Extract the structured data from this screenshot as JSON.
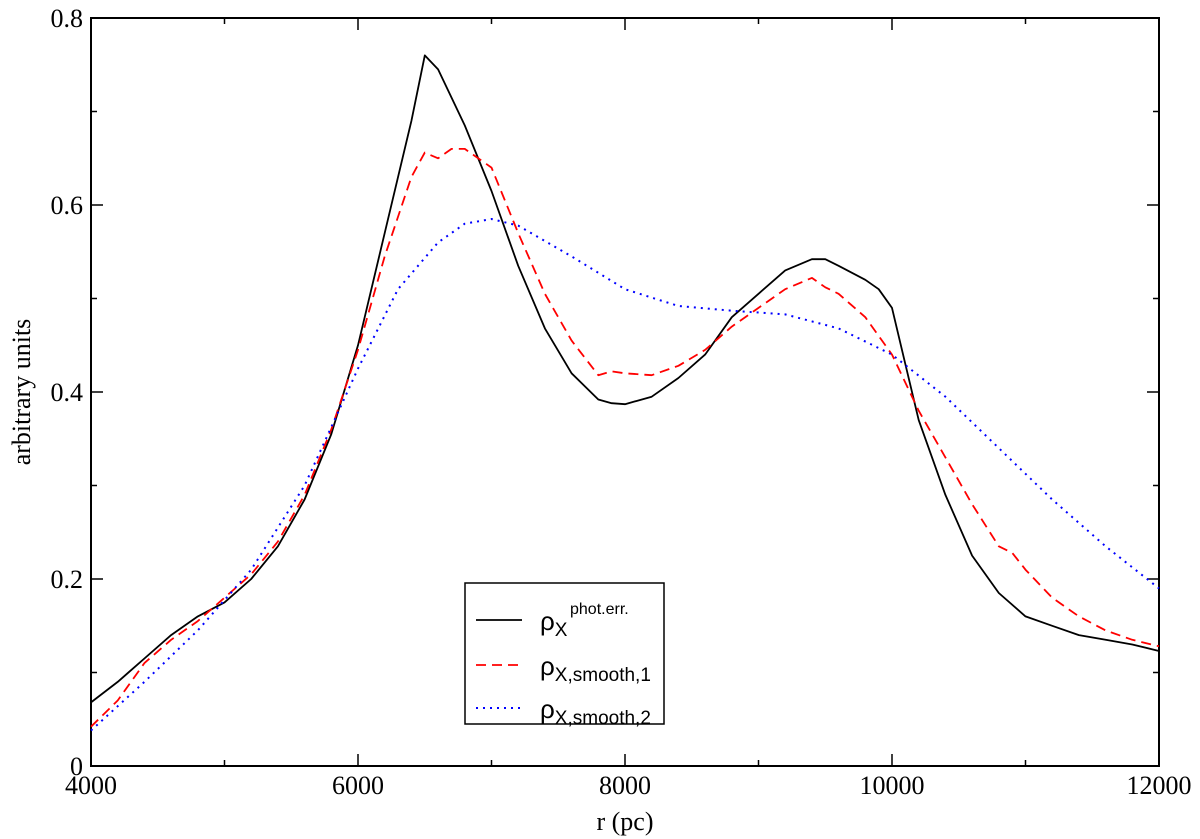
{
  "chart_data": {
    "type": "line",
    "xlabel": "r (pc)",
    "ylabel": "arbitrary units",
    "xlim": [
      4000,
      12000
    ],
    "ylim": [
      0,
      0.8
    ],
    "x_ticks": [
      "4000",
      "6000",
      "8000",
      "10000",
      "12000"
    ],
    "y_ticks": [
      "0",
      "0.2",
      "0.4",
      "0.6",
      "0.8"
    ],
    "grid": false,
    "legend_position": "bottom-center",
    "series": [
      {
        "name": "phot.err.",
        "legend_label": {
          "base": "ρ",
          "sub": "X",
          "sup": "phot.err."
        },
        "color": "#000000",
        "style": "solid",
        "points": [
          [
            4000,
            0.068
          ],
          [
            4200,
            0.09
          ],
          [
            4400,
            0.115
          ],
          [
            4600,
            0.14
          ],
          [
            4800,
            0.16
          ],
          [
            5000,
            0.175
          ],
          [
            5200,
            0.2
          ],
          [
            5400,
            0.235
          ],
          [
            5600,
            0.285
          ],
          [
            5800,
            0.355
          ],
          [
            6000,
            0.45
          ],
          [
            6200,
            0.57
          ],
          [
            6400,
            0.69
          ],
          [
            6500,
            0.76
          ],
          [
            6600,
            0.745
          ],
          [
            6800,
            0.685
          ],
          [
            7000,
            0.615
          ],
          [
            7200,
            0.535
          ],
          [
            7400,
            0.468
          ],
          [
            7600,
            0.42
          ],
          [
            7800,
            0.392
          ],
          [
            7900,
            0.388
          ],
          [
            8000,
            0.387
          ],
          [
            8200,
            0.395
          ],
          [
            8400,
            0.415
          ],
          [
            8600,
            0.44
          ],
          [
            8800,
            0.48
          ],
          [
            9000,
            0.505
          ],
          [
            9200,
            0.53
          ],
          [
            9400,
            0.542
          ],
          [
            9500,
            0.542
          ],
          [
            9600,
            0.535
          ],
          [
            9800,
            0.52
          ],
          [
            9900,
            0.51
          ],
          [
            10000,
            0.49
          ],
          [
            10100,
            0.43
          ],
          [
            10200,
            0.37
          ],
          [
            10400,
            0.29
          ],
          [
            10600,
            0.225
          ],
          [
            10800,
            0.185
          ],
          [
            11000,
            0.16
          ],
          [
            11200,
            0.15
          ],
          [
            11400,
            0.14
          ],
          [
            11600,
            0.135
          ],
          [
            11800,
            0.13
          ],
          [
            12000,
            0.123
          ]
        ]
      },
      {
        "name": "X,smooth,1",
        "legend_label": {
          "base": "ρ",
          "sub": "X,smooth,1",
          "sup": ""
        },
        "color": "#ff0000",
        "style": "dashed",
        "points": [
          [
            4000,
            0.042
          ],
          [
            4200,
            0.07
          ],
          [
            4400,
            0.11
          ],
          [
            4600,
            0.135
          ],
          [
            4800,
            0.155
          ],
          [
            5000,
            0.18
          ],
          [
            5200,
            0.205
          ],
          [
            5400,
            0.24
          ],
          [
            5600,
            0.29
          ],
          [
            5800,
            0.36
          ],
          [
            6000,
            0.445
          ],
          [
            6200,
            0.545
          ],
          [
            6400,
            0.63
          ],
          [
            6500,
            0.656
          ],
          [
            6600,
            0.65
          ],
          [
            6700,
            0.66
          ],
          [
            6800,
            0.66
          ],
          [
            7000,
            0.64
          ],
          [
            7200,
            0.57
          ],
          [
            7400,
            0.505
          ],
          [
            7600,
            0.455
          ],
          [
            7800,
            0.418
          ],
          [
            7900,
            0.422
          ],
          [
            8000,
            0.42
          ],
          [
            8200,
            0.418
          ],
          [
            8400,
            0.428
          ],
          [
            8600,
            0.445
          ],
          [
            8800,
            0.47
          ],
          [
            9000,
            0.49
          ],
          [
            9200,
            0.51
          ],
          [
            9400,
            0.522
          ],
          [
            9500,
            0.512
          ],
          [
            9600,
            0.505
          ],
          [
            9800,
            0.48
          ],
          [
            10000,
            0.44
          ],
          [
            10200,
            0.38
          ],
          [
            10400,
            0.33
          ],
          [
            10600,
            0.28
          ],
          [
            10800,
            0.235
          ],
          [
            10900,
            0.228
          ],
          [
            11000,
            0.21
          ],
          [
            11200,
            0.18
          ],
          [
            11400,
            0.16
          ],
          [
            11600,
            0.145
          ],
          [
            11800,
            0.135
          ],
          [
            12000,
            0.128
          ]
        ]
      },
      {
        "name": "X,smooth,2",
        "legend_label": {
          "base": "ρ",
          "sub": "X,smooth,2",
          "sup": ""
        },
        "color": "#0000ff",
        "style": "dotted",
        "points": [
          [
            4000,
            0.038
          ],
          [
            4400,
            0.09
          ],
          [
            4800,
            0.145
          ],
          [
            5200,
            0.21
          ],
          [
            5600,
            0.3
          ],
          [
            6000,
            0.425
          ],
          [
            6300,
            0.51
          ],
          [
            6600,
            0.56
          ],
          [
            6800,
            0.58
          ],
          [
            7000,
            0.585
          ],
          [
            7200,
            0.578
          ],
          [
            7600,
            0.545
          ],
          [
            8000,
            0.51
          ],
          [
            8400,
            0.492
          ],
          [
            8800,
            0.487
          ],
          [
            9200,
            0.483
          ],
          [
            9600,
            0.468
          ],
          [
            10000,
            0.44
          ],
          [
            10400,
            0.395
          ],
          [
            10800,
            0.34
          ],
          [
            11200,
            0.285
          ],
          [
            11600,
            0.235
          ],
          [
            12000,
            0.19
          ]
        ]
      }
    ]
  }
}
